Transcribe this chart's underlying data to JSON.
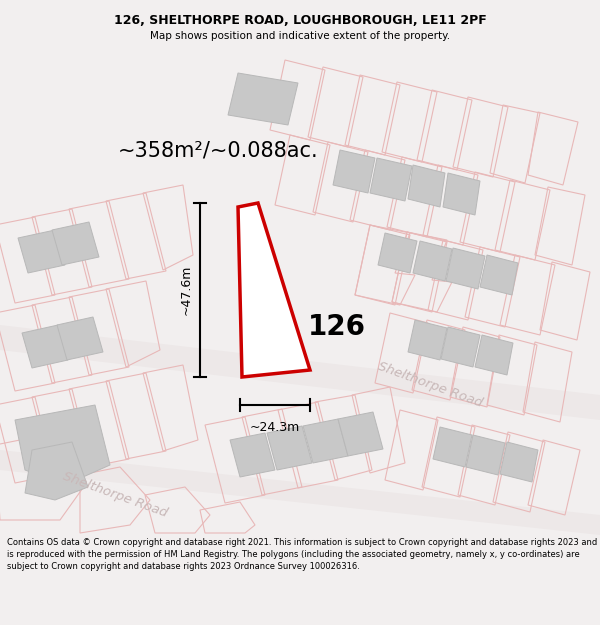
{
  "title_line1": "126, SHELTHORPE ROAD, LOUGHBOROUGH, LE11 2PF",
  "title_line2": "Map shows position and indicative extent of the property.",
  "area_text": "~358m²/~0.088ac.",
  "label_126": "126",
  "dim_vertical": "~47.6m",
  "dim_horizontal": "~24.3m",
  "road_label_upper": "Shelthorpe Road",
  "road_label_lower": "Shelthorpe Road",
  "footer_text": "Contains OS data © Crown copyright and database right 2021. This information is subject to Crown copyright and database rights 2023 and is reproduced with the permission of HM Land Registry. The polygons (including the associated geometry, namely x, y co-ordinates) are subject to Crown copyright and database rights 2023 Ordnance Survey 100026316.",
  "bg_color": "#f2efef",
  "map_bg": "#ffffff",
  "highlight_stroke": "#cc0000",
  "highlight_fill": "#ffffff",
  "building_fill": "#c8c8c8",
  "building_stroke": "#b8b8b8",
  "plot_stroke": "#e8b8b8",
  "plot_fill": "none",
  "road_fill": "#ede8e8",
  "road_text_color": "#c8b8b8",
  "dim_color": "#000000",
  "text_color": "#000000",
  "header_bg": "#f2efef",
  "footer_bg": "#f2efef"
}
